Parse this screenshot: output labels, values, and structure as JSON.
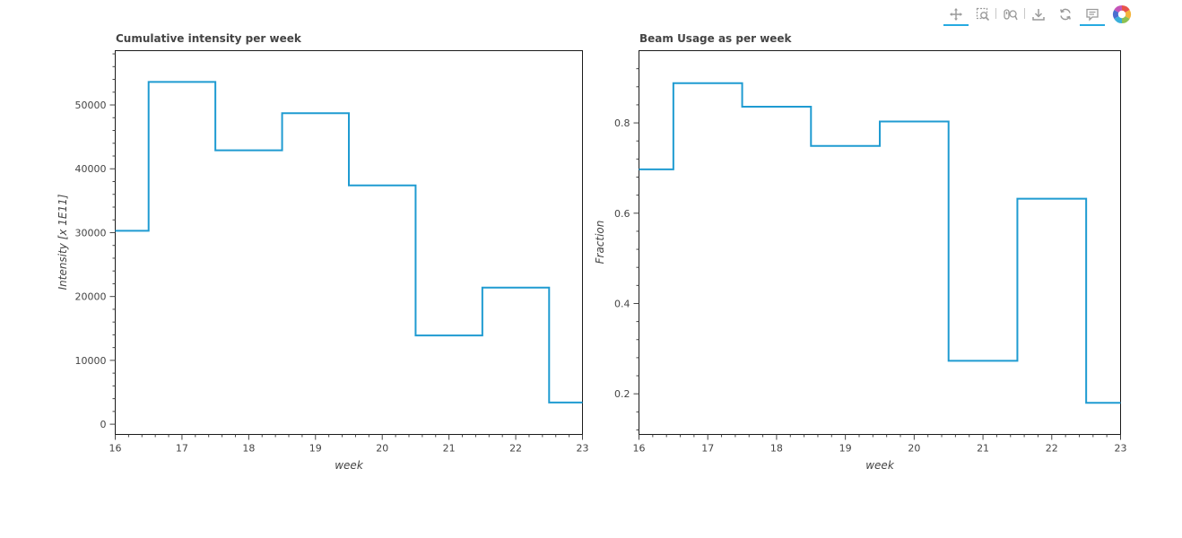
{
  "toolbar": {
    "tools": [
      "pan-tool",
      "box-zoom-tool",
      "wheel-zoom-tool",
      "save-tool",
      "reset-tool",
      "hover-tool",
      "bokeh-logo"
    ]
  },
  "chart_data": [
    {
      "type": "line",
      "step": "center",
      "title": "Cumulative intensity per week",
      "xlabel": "week",
      "ylabel": "Intensity [x 1E11]",
      "xlim": [
        16,
        23
      ],
      "ylim": [
        -1600,
        58500
      ],
      "xticks": [
        "16",
        "17",
        "18",
        "19",
        "20",
        "21",
        "22",
        "23"
      ],
      "yticks": [
        "0",
        "10000",
        "20000",
        "30000",
        "40000",
        "50000"
      ],
      "x": [
        16,
        17,
        18,
        19,
        20,
        21,
        22,
        23
      ],
      "series": [
        {
          "color": "#1f9bd1",
          "values": [
            30300,
            53600,
            42900,
            48700,
            37400,
            13900,
            21400,
            3400
          ]
        }
      ],
      "grid": false,
      "legend": "none"
    },
    {
      "type": "line",
      "step": "center",
      "title": "Beam Usage as per week",
      "xlabel": "week",
      "ylabel": "Fraction",
      "xlim": [
        16,
        23
      ],
      "ylim": [
        0.11,
        0.96
      ],
      "xticks": [
        "16",
        "17",
        "18",
        "19",
        "20",
        "21",
        "22",
        "23"
      ],
      "yticks": [
        "0.2",
        "0.4",
        "0.6",
        "0.8"
      ],
      "x": [
        16,
        17,
        18,
        19,
        20,
        21,
        22,
        23
      ],
      "series": [
        {
          "color": "#1f9bd1",
          "values": [
            0.697,
            0.888,
            0.836,
            0.749,
            0.803,
            0.273,
            0.632,
            0.18
          ]
        }
      ],
      "grid": false,
      "legend": "none"
    }
  ]
}
